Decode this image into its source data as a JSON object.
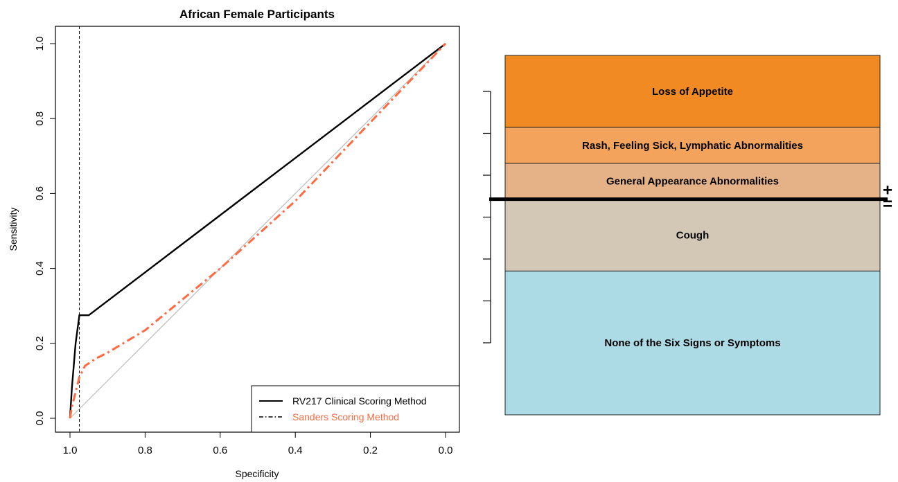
{
  "chart_data": [
    {
      "type": "line",
      "title": "African Female Participants",
      "xlabel": "Specificity",
      "ylabel": "Sensitivity",
      "xlim": [
        1.0,
        0.0
      ],
      "ylim": [
        0.0,
        1.0
      ],
      "x_reversed": true,
      "x_ticks": [
        "1.0",
        "0.8",
        "0.6",
        "0.4",
        "0.2",
        "0.0"
      ],
      "x_tick_values": [
        1.0,
        0.8,
        0.6,
        0.4,
        0.2,
        0.0
      ],
      "y_ticks": [
        "0.0",
        "0.2",
        "0.4",
        "0.6",
        "0.8",
        "1.0"
      ],
      "y_tick_values": [
        0.0,
        0.2,
        0.4,
        0.6,
        0.8,
        1.0
      ],
      "grid": false,
      "legend_position": "bottom-right",
      "reference_line": {
        "label": "",
        "x": 0.975,
        "style": "dashed",
        "color": "#000000"
      },
      "diagonal": {
        "from": [
          1.0,
          0.0
        ],
        "to": [
          0.0,
          1.0
        ],
        "color": "#bbbbbb"
      },
      "series": [
        {
          "name": "RV217 Clinical Scoring Method",
          "color": "#000000",
          "style": "solid",
          "x": [
            1.0,
            0.995,
            0.985,
            0.975,
            0.95,
            0.0
          ],
          "y": [
            0.0,
            0.08,
            0.2,
            0.275,
            0.275,
            1.0
          ]
        },
        {
          "name": "Sanders Scoring Method",
          "color": "#ff6a40",
          "style": "dashdot",
          "x": [
            1.0,
            0.995,
            0.985,
            0.975,
            0.96,
            0.93,
            0.9,
            0.85,
            0.8,
            0.6,
            0.4,
            0.2,
            0.0
          ],
          "y": [
            0.0,
            0.03,
            0.07,
            0.11,
            0.14,
            0.16,
            0.175,
            0.205,
            0.235,
            0.4,
            0.58,
            0.79,
            1.0
          ]
        }
      ]
    },
    {
      "type": "stacked-bar",
      "divider_after_index": 2,
      "divider_labels": [
        "+",
        "="
      ],
      "tick_marks_count": 7,
      "segments": [
        {
          "label": "Loss of Appetite",
          "color": "#f18a23",
          "share": 0.2
        },
        {
          "label": "Rash, Feeling Sick, Lymphatic Abnormalities",
          "color": "#f4a35c",
          "share": 0.1
        },
        {
          "label": "General Appearance Abnormalities",
          "color": "#e5b288",
          "share": 0.1
        },
        {
          "label": "Cough",
          "color": "#d3c8b5",
          "share": 0.2
        },
        {
          "label": "None of the Six Signs or Symptoms",
          "color": "#acdbe5",
          "share": 0.4
        }
      ]
    }
  ]
}
